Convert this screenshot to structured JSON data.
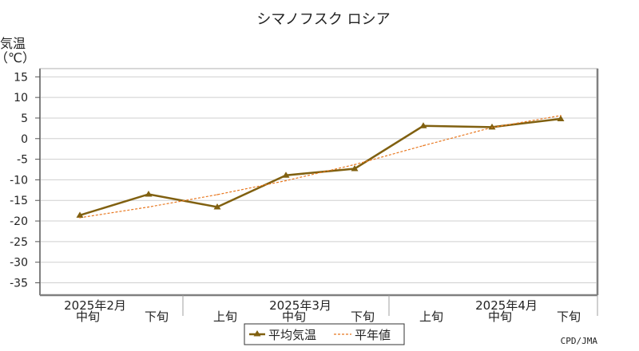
{
  "chart_data": {
    "type": "line",
    "title": "シマノフスク ロシア",
    "ylabel_line1": "気温",
    "ylabel_line2": "（℃）",
    "ylim": [
      -38,
      17
    ],
    "yticks": [
      15,
      10,
      5,
      0,
      -5,
      -10,
      -15,
      -20,
      -25,
      -30,
      -35
    ],
    "categories": [
      "中旬",
      "下旬",
      "上旬",
      "中旬",
      "下旬",
      "上旬",
      "中旬",
      "下旬"
    ],
    "month_groups": [
      {
        "label": "2025年2月",
        "start": 0,
        "end": 1
      },
      {
        "label": "2025年3月",
        "start": 2,
        "end": 4
      },
      {
        "label": "2025年4月",
        "start": 5,
        "end": 7
      }
    ],
    "series": [
      {
        "name": "平均気温",
        "values": [
          -18.6,
          -13.5,
          -16.6,
          -8.9,
          -7.3,
          3.1,
          2.8,
          4.8
        ],
        "color": "#806010"
      },
      {
        "name": "平年値",
        "values": [
          -19.2,
          -16.6,
          -13.6,
          -10.2,
          -6.3,
          -1.7,
          2.7,
          5.6
        ],
        "color": "#e87820"
      }
    ],
    "grid": true,
    "legend_position": "bottom-center"
  },
  "credit": "CPD/JMA"
}
